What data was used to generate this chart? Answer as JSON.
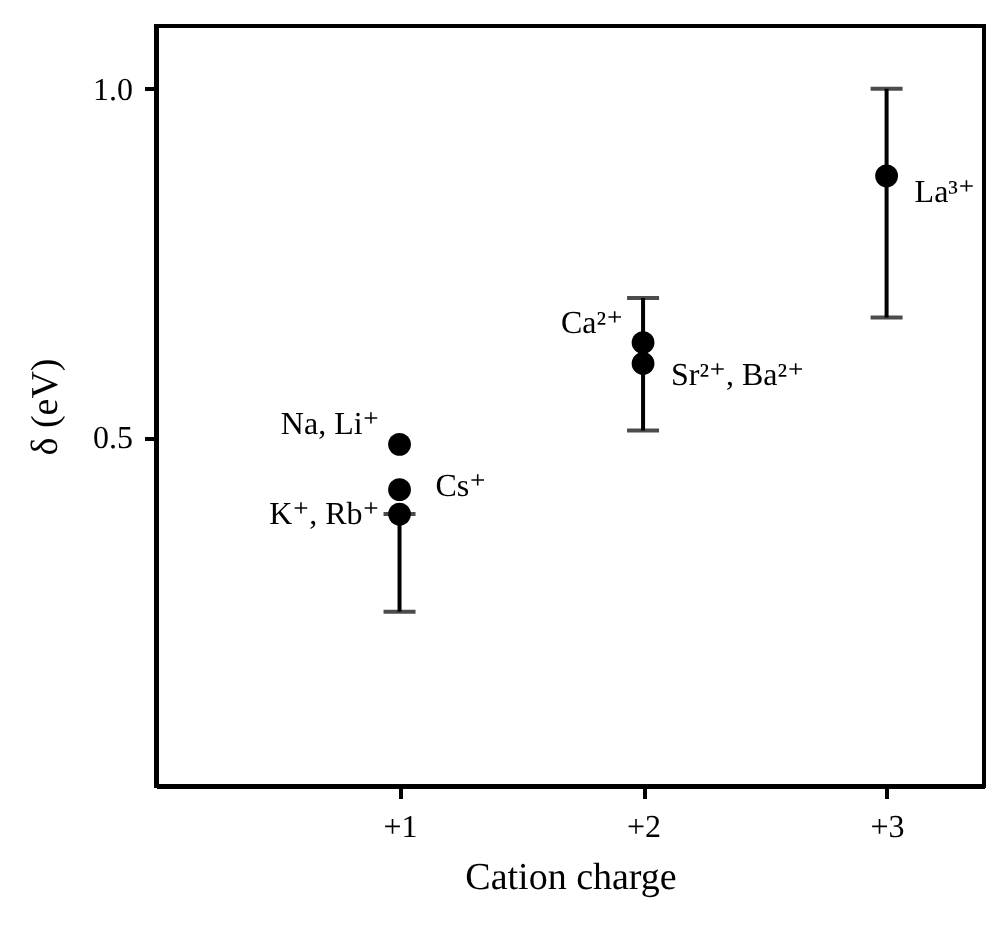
{
  "chart_data": {
    "type": "scatter",
    "xlabel": "Cation charge",
    "ylabel": "δ (eV)",
    "xlim": [
      0,
      3.4
    ],
    "xticks": [
      {
        "value": 1,
        "label": "+1"
      },
      {
        "value": 2,
        "label": "+2"
      },
      {
        "value": 3,
        "label": "+3"
      }
    ],
    "ylim": [
      0,
      1.09
    ],
    "yticks": [
      0.5,
      {
        "value": 1,
        "label": "1.0"
      }
    ],
    "grid": false,
    "marker": "circle",
    "series": [
      {
        "color": "#000000",
        "x": [
          1,
          1,
          1,
          2,
          2,
          3
        ],
        "values": [
          0.49,
          0.425,
          0.39,
          0.636,
          0.606,
          0.875
        ],
        "errors": [
          null,
          null,
          [
            0.25,
            0.39
          ],
          null,
          [
            0.51,
            0.7
          ],
          [
            0.672,
            1.0
          ]
        ]
      }
    ],
    "annotations": [
      {
        "text": "Na, Li⁺",
        "x": 1,
        "y": 0.49
      },
      {
        "text": "Cs⁺",
        "x": 1,
        "y": 0.425
      },
      {
        "text": "K⁺, Rb⁺",
        "x": 1,
        "y": 0.39
      },
      {
        "text": "Ca²⁺",
        "x": 2,
        "y": 0.636
      },
      {
        "text": "Sr²⁺, Ba²⁺",
        "x": 2,
        "y": 0.606
      },
      {
        "text": "La³⁺",
        "x": 3,
        "y": 0.875
      }
    ]
  }
}
